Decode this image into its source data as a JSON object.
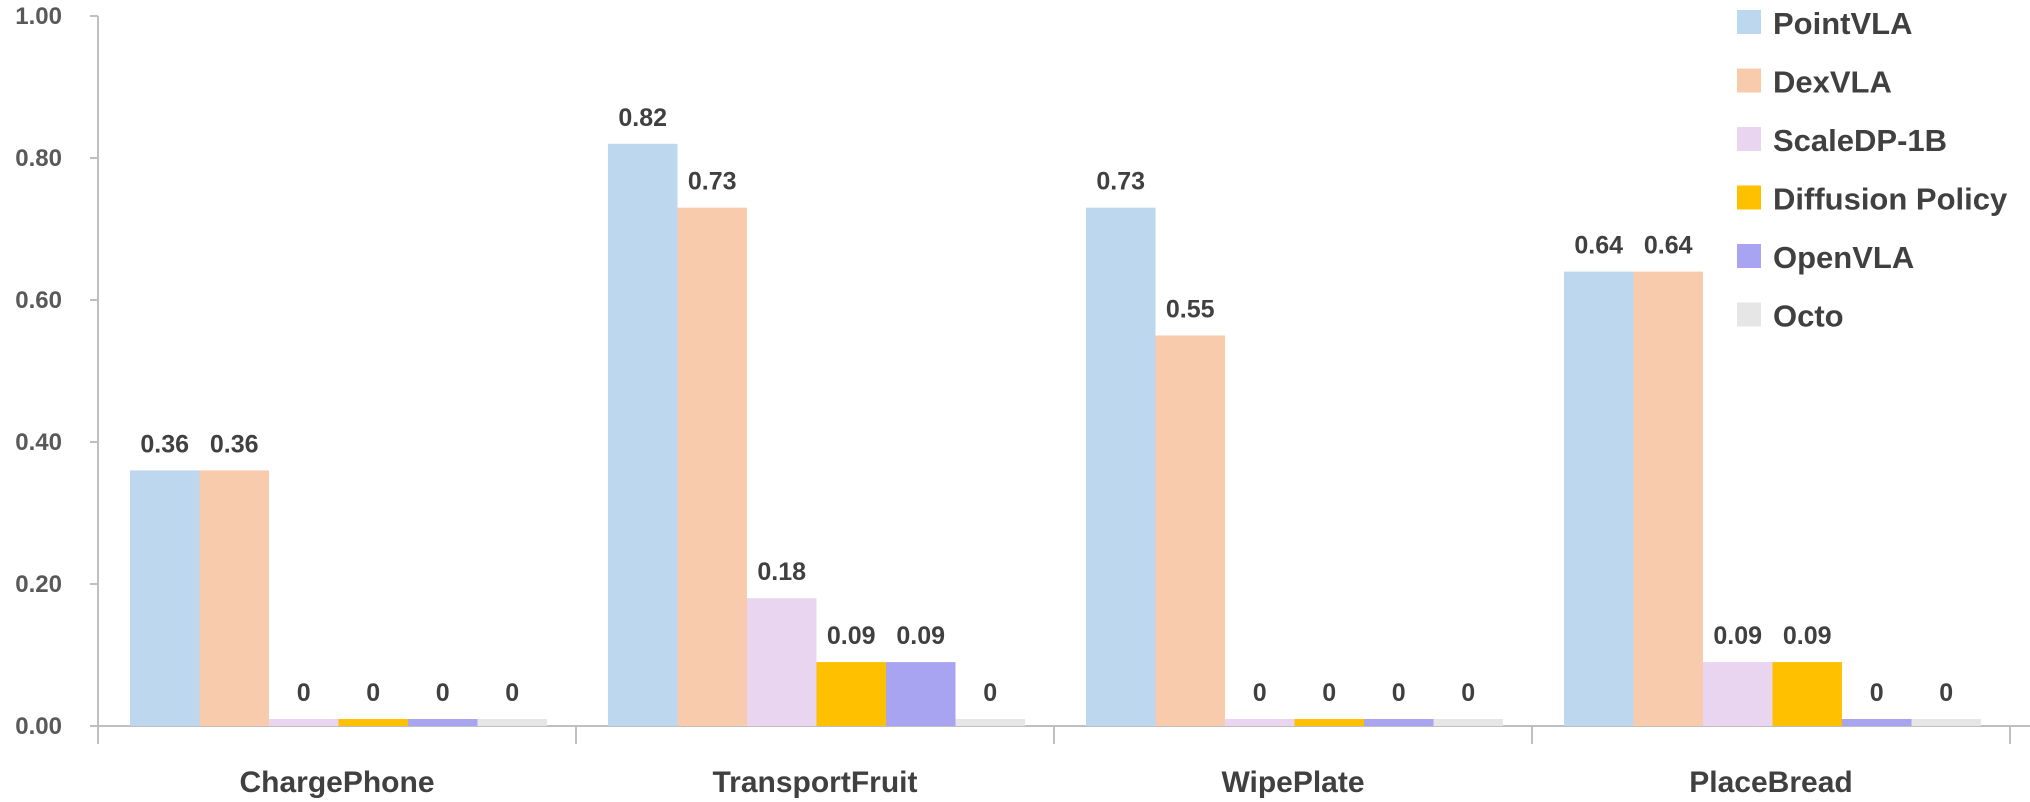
{
  "chart_data": {
    "type": "bar",
    "title": "",
    "xlabel": "",
    "ylabel": "",
    "ylim": [
      0,
      1.0
    ],
    "yticks": [
      "0.00",
      "0.20",
      "0.40",
      "0.60",
      "0.80",
      "1.00"
    ],
    "categories": [
      "ChargePhone",
      "TransportFruit",
      "WipePlate",
      "PlaceBread"
    ],
    "legend_position": "top-right",
    "grid": false,
    "series": [
      {
        "name": "PointVLA",
        "color": "#BDD7EE",
        "values": [
          0.36,
          0.82,
          0.73,
          0.64
        ],
        "labels": [
          "0.36",
          "0.82",
          "0.73",
          "0.64"
        ]
      },
      {
        "name": "DexVLA",
        "color": "#F8CBAD",
        "values": [
          0.36,
          0.73,
          0.55,
          0.64
        ],
        "labels": [
          "0.36",
          "0.73",
          "0.55",
          "0.64"
        ]
      },
      {
        "name": "ScaleDP-1B",
        "color": "#E9D5F0",
        "values": [
          0,
          0.18,
          0,
          0.09
        ],
        "labels": [
          "0",
          "0.18",
          "0",
          "0.09"
        ]
      },
      {
        "name": "Diffusion Policy",
        "color": "#FFC000",
        "values": [
          0,
          0.09,
          0,
          0.09
        ],
        "labels": [
          "0",
          "0.09",
          "0",
          "0.09"
        ]
      },
      {
        "name": "OpenVLA",
        "color": "#A9A4F2",
        "values": [
          0,
          0.09,
          0,
          0
        ],
        "labels": [
          "0",
          "0.09",
          "0",
          "0"
        ]
      },
      {
        "name": "Octo",
        "color": "#E7E6E6",
        "values": [
          0,
          0,
          0,
          0
        ],
        "labels": [
          "0",
          "0",
          "0",
          "0"
        ]
      }
    ]
  }
}
